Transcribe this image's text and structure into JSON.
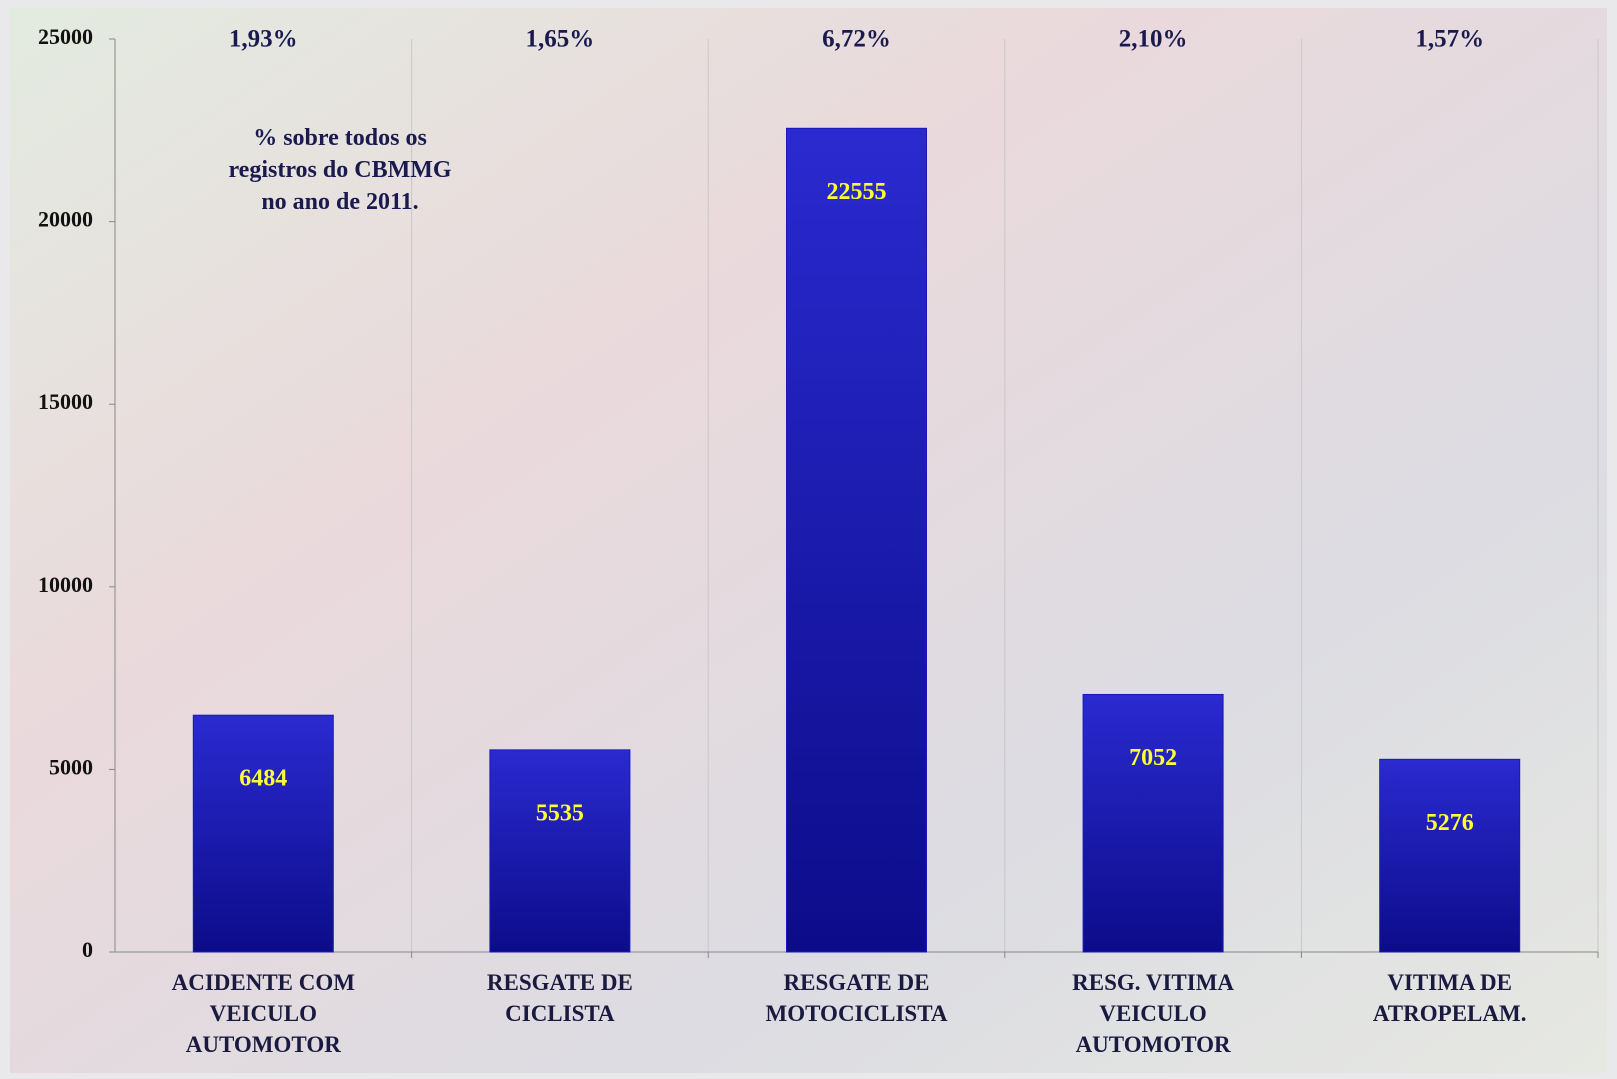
{
  "chart_data": {
    "type": "bar",
    "categories": [
      "ACIDENTE COM\nVEICULO\nAUTOMOTOR",
      "RESGATE DE\nCICLISTA",
      "RESGATE DE\nMOTOCICLISTA",
      "RESG. VITIMA\nVEICULO\nAUTOMOTOR",
      "VITIMA DE\nATROPELAM."
    ],
    "values": [
      6484,
      5535,
      22555,
      7052,
      5276
    ],
    "percent_labels": [
      "1,93%",
      "1,65%",
      "6,72%",
      "2,10%",
      "1,57%"
    ],
    "annotation": "% sobre todos os\nregistros do CBMMG\nno ano de 2011.",
    "color": "#1a1ab8",
    "ylim": [
      0,
      25000
    ],
    "yticks": [
      0,
      5000,
      10000,
      15000,
      20000,
      25000
    ],
    "grid": true
  }
}
